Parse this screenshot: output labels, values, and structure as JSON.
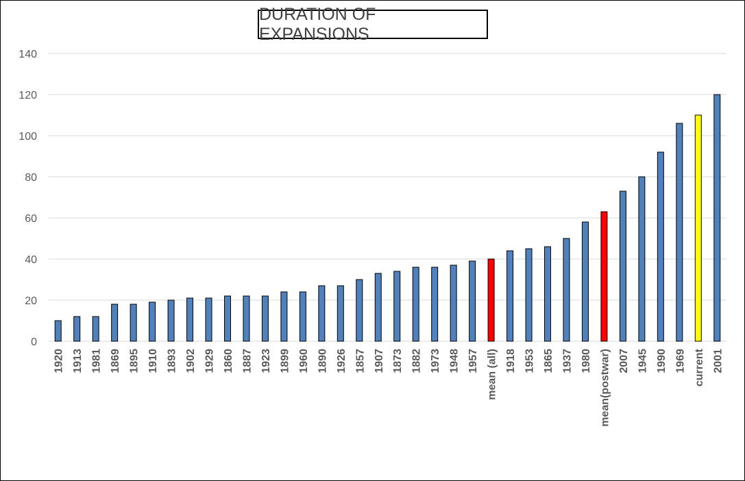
{
  "chart_data": {
    "type": "bar",
    "title": "DURATION OF EXPANSIONS",
    "xlabel": "",
    "ylabel": "",
    "ylim": [
      0,
      140
    ],
    "yticks": [
      0,
      20,
      40,
      60,
      80,
      100,
      120,
      140
    ],
    "grid": true,
    "legend": "none",
    "categories": [
      "1920",
      "1913",
      "1981",
      "1869",
      "1895",
      "1910",
      "1893",
      "1902",
      "1929",
      "1860",
      "1887",
      "1923",
      "1899",
      "1960",
      "1890",
      "1926",
      "1857",
      "1907",
      "1873",
      "1882",
      "1973",
      "1948",
      "1957",
      "mean (all)",
      "1918",
      "1953",
      "1865",
      "1937",
      "1980",
      "mean(postwar)",
      "2007",
      "1945",
      "1990",
      "1969",
      "current",
      "2001"
    ],
    "values": [
      10,
      12,
      12,
      18,
      18,
      19,
      20,
      21,
      21,
      22,
      22,
      22,
      24,
      24,
      27,
      27,
      30,
      33,
      34,
      36,
      36,
      37,
      39,
      40,
      44,
      45,
      46,
      50,
      58,
      63,
      73,
      80,
      92,
      106,
      110,
      120
    ],
    "colors": {
      "default": "#4f81bd",
      "mean": "#ff0000",
      "current": "#ffff00",
      "outline": "#000000",
      "grid": "#d9d9d9"
    },
    "highlight": {
      "mean (all)": "mean",
      "mean(postwar)": "mean",
      "current": "current"
    }
  }
}
